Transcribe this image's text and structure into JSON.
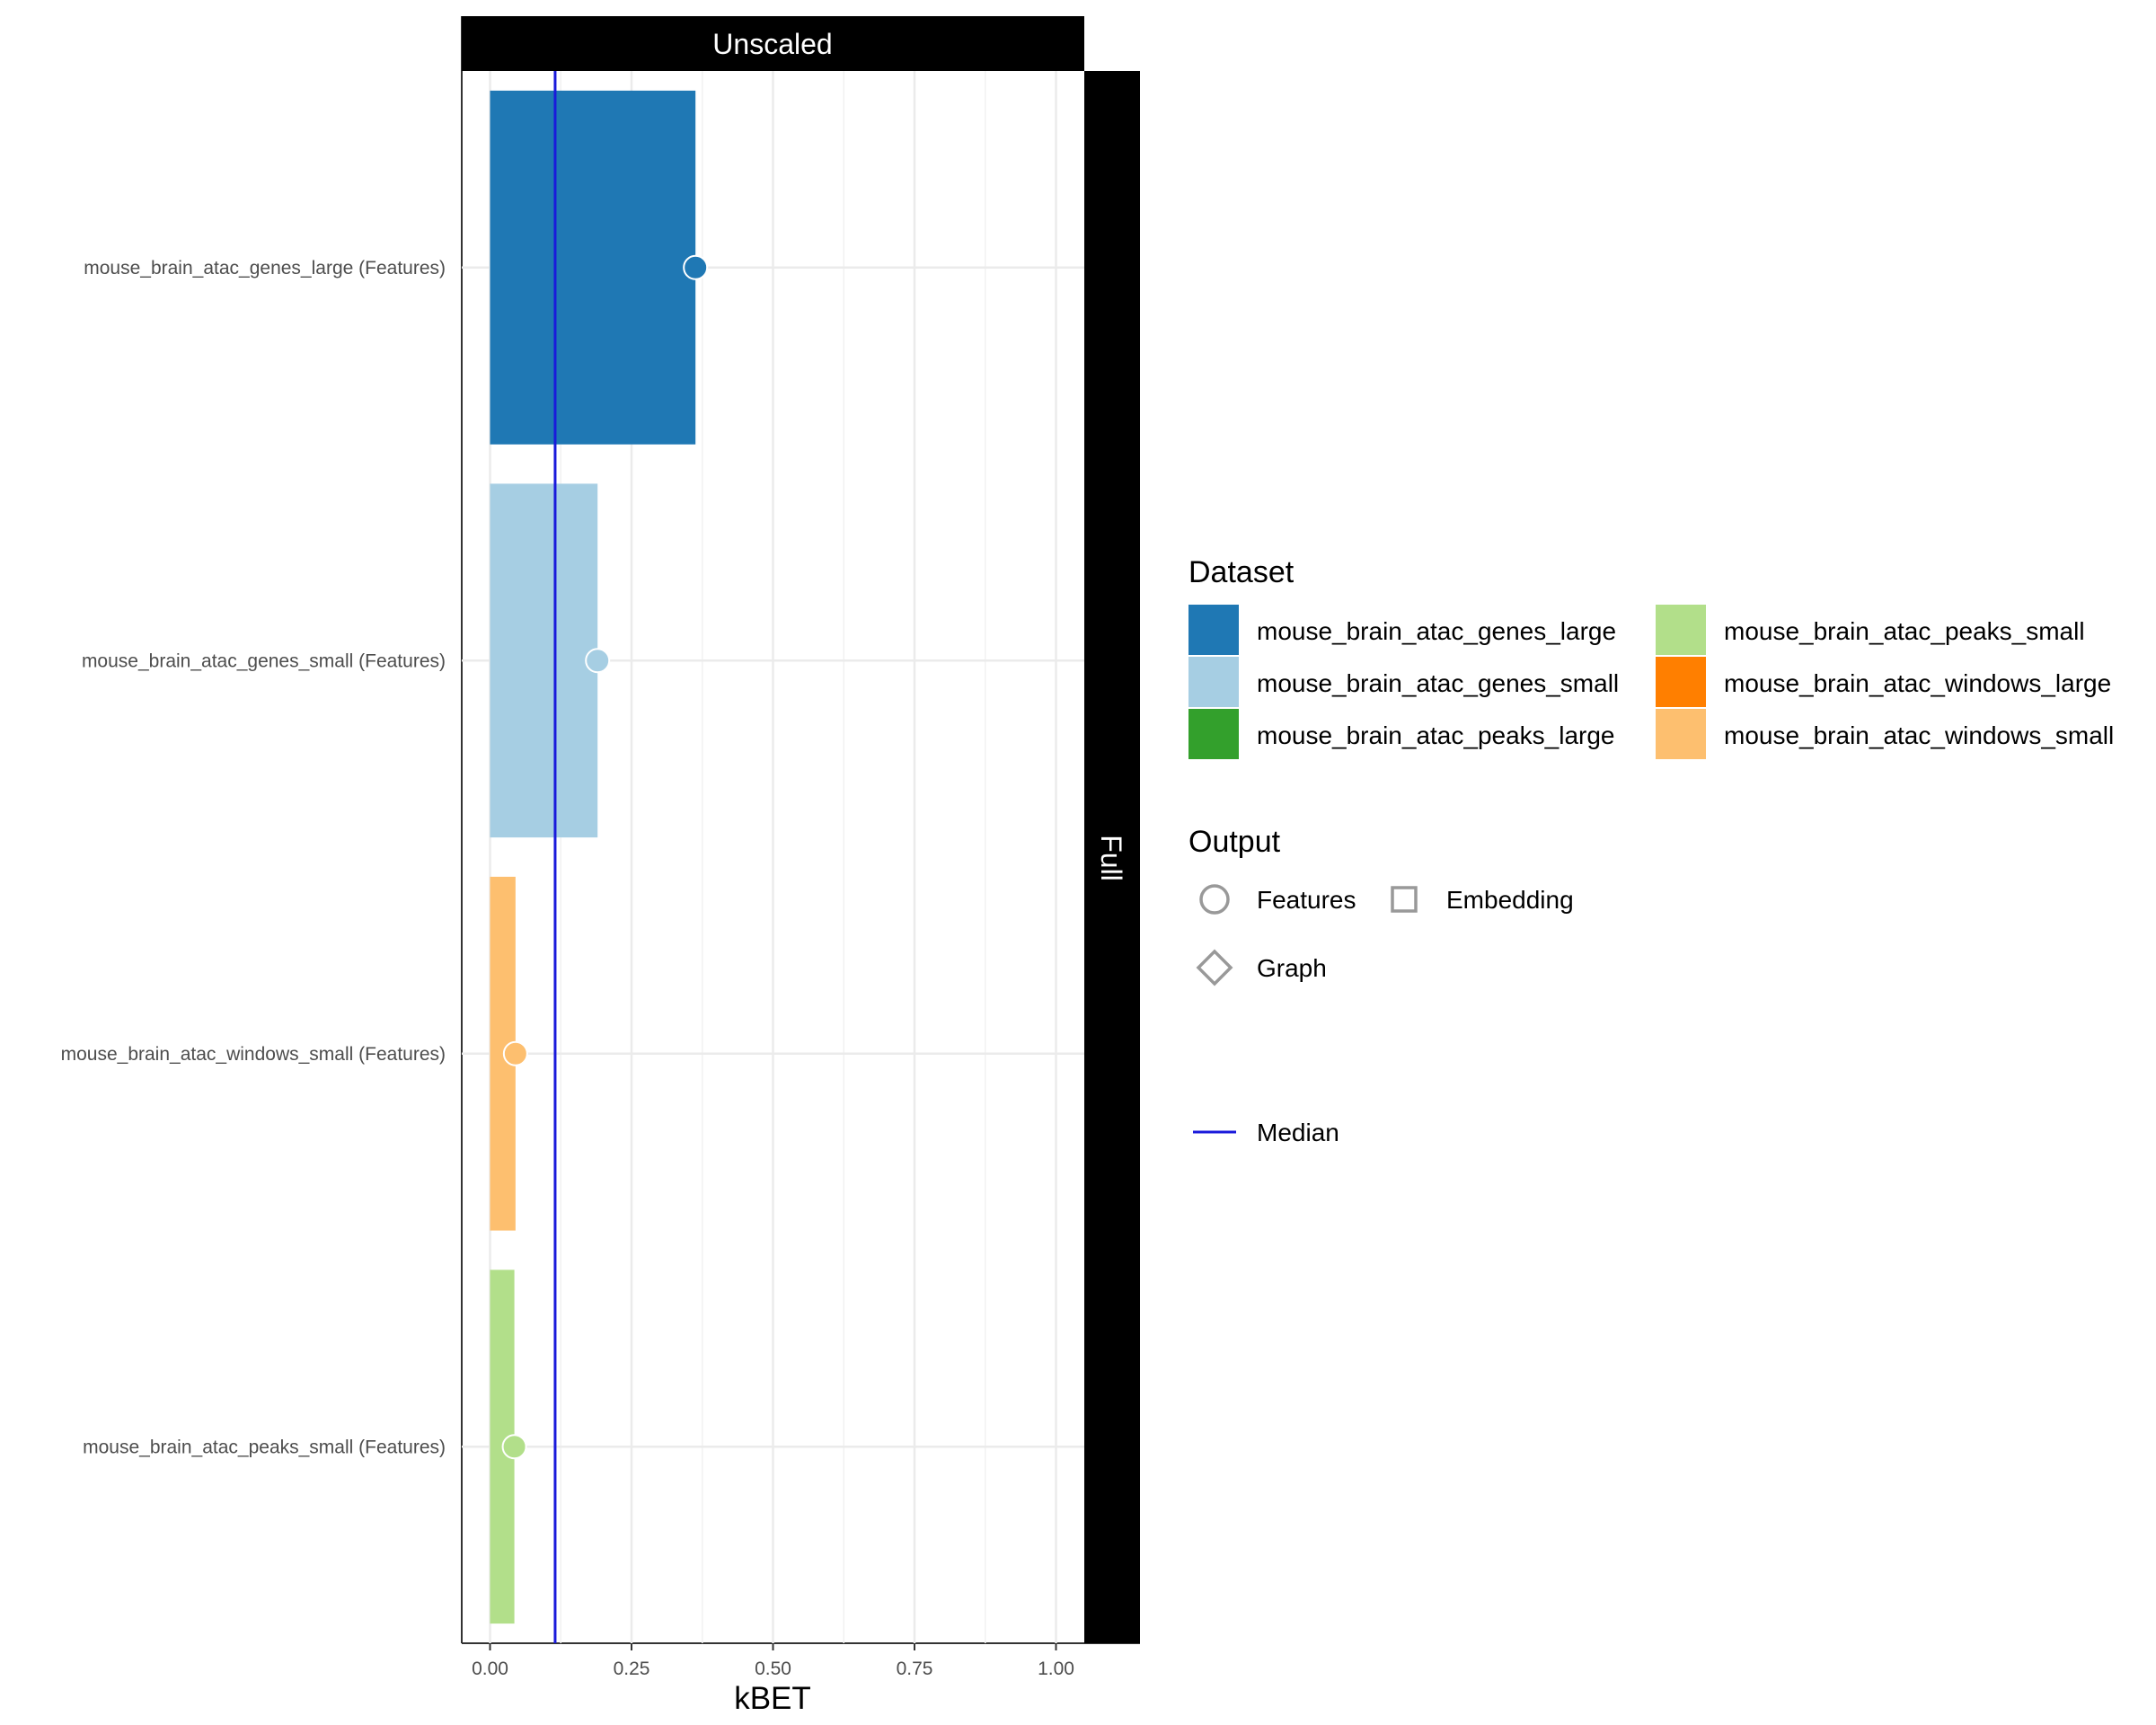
{
  "chart_data": {
    "type": "bar",
    "facet_top": "Unscaled",
    "facet_right": "Full",
    "xlabel": "kBET",
    "xlim": [
      -0.05,
      1.05
    ],
    "xticks": [
      0.0,
      0.25,
      0.5,
      0.75,
      1.0
    ],
    "xtick_labels": [
      "0.00",
      "0.25",
      "0.50",
      "0.75",
      "1.00"
    ],
    "median": 0.115,
    "categories": [
      "mouse_brain_atac_genes_large (Features)",
      "mouse_brain_atac_genes_small (Features)",
      "mouse_brain_atac_windows_small (Features)",
      "mouse_brain_atac_peaks_small (Features)"
    ],
    "values": [
      0.363,
      0.19,
      0.045,
      0.043
    ],
    "bar_colors": [
      "#1f78b4",
      "#a6cee3",
      "#fdbf6f",
      "#b2df8a"
    ],
    "output": [
      "Features",
      "Features",
      "Features",
      "Features"
    ],
    "grid": true,
    "legend_position": "right"
  },
  "legend": {
    "dataset_title": "Dataset",
    "datasets": [
      {
        "label": "mouse_brain_atac_genes_large",
        "color": "#1f78b4"
      },
      {
        "label": "mouse_brain_atac_genes_small",
        "color": "#a6cee3"
      },
      {
        "label": "mouse_brain_atac_peaks_large",
        "color": "#33a02c"
      },
      {
        "label": "mouse_brain_atac_peaks_small",
        "color": "#b2df8a"
      },
      {
        "label": "mouse_brain_atac_windows_large",
        "color": "#ff7f00"
      },
      {
        "label": "mouse_brain_atac_windows_small",
        "color": "#fdbf6f"
      }
    ],
    "output_title": "Output",
    "outputs": [
      {
        "label": "Features",
        "shape": "circle"
      },
      {
        "label": "Embedding",
        "shape": "square"
      },
      {
        "label": "Graph",
        "shape": "diamond"
      }
    ],
    "median_label": "Median",
    "median_color": "#1a1adb"
  }
}
